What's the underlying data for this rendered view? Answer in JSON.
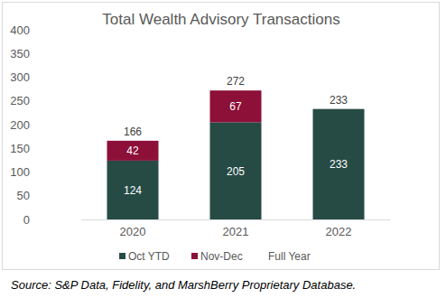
{
  "chart_data": {
    "type": "bar",
    "title": "Total Wealth Advisory Transactions",
    "source": "Source: S&P Data, Fidelity, and MarshBerry Proprietary Database.",
    "categories": [
      "2020",
      "2021",
      "2022"
    ],
    "stacked": true,
    "data_labels": true,
    "grid": false,
    "legend": "bottom",
    "ylim": [
      0,
      400
    ],
    "yticks": [
      0,
      50,
      100,
      150,
      200,
      250,
      300,
      350,
      400
    ],
    "series": [
      {
        "name": "Oct YTD",
        "color": "#264b45",
        "values": [
          124,
          205,
          233
        ]
      },
      {
        "name": "Nov-Dec",
        "color": "#8c1038",
        "values": [
          42,
          67,
          null
        ]
      },
      {
        "name": "Full Year",
        "type": "line",
        "line_style": "none",
        "marker": "none",
        "values": [
          166,
          272,
          233
        ]
      }
    ]
  }
}
